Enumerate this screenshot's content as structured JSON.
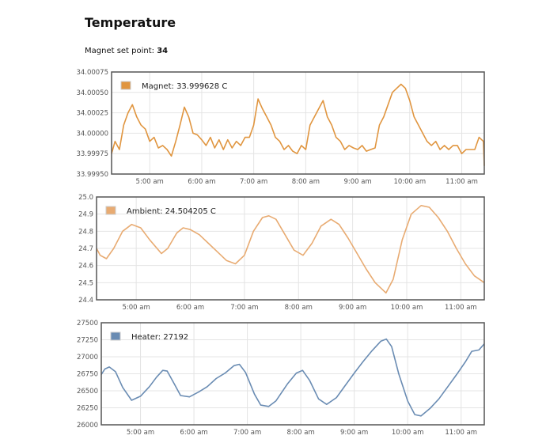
{
  "page": {
    "title": "Temperature",
    "setpoint_label": "Magnet set point:",
    "setpoint_value": "34"
  },
  "chart_data": [
    {
      "type": "line",
      "legend": "Magnet: 33.999628 C",
      "color": "#e0953f",
      "ylim": [
        33.9995,
        34.00075
      ],
      "yticks": [
        "33.99950",
        "33.99975",
        "34.00000",
        "34.00025",
        "34.00050",
        "34.00075"
      ],
      "xlim": [
        "4:16",
        "11:26"
      ],
      "xticks": [
        "5:00 am",
        "6:00 am",
        "7:00 am",
        "8:00 am",
        "9:00 am",
        "10:00 am",
        "11:00 am"
      ],
      "grid": true,
      "legend_position": "top-left",
      "x": [
        "4:16",
        "4:20",
        "4:25",
        "4:30",
        "4:35",
        "4:40",
        "4:45",
        "4:50",
        "4:55",
        "5:00",
        "5:05",
        "5:10",
        "5:15",
        "5:20",
        "5:25",
        "5:30",
        "5:35",
        "5:40",
        "5:45",
        "5:50",
        "5:55",
        "6:00",
        "6:05",
        "6:10",
        "6:15",
        "6:20",
        "6:25",
        "6:30",
        "6:35",
        "6:40",
        "6:45",
        "6:50",
        "6:55",
        "7:00",
        "7:05",
        "7:10",
        "7:15",
        "7:20",
        "7:25",
        "7:30",
        "7:35",
        "7:40",
        "7:45",
        "7:50",
        "7:55",
        "8:00",
        "8:05",
        "8:10",
        "8:15",
        "8:20",
        "8:25",
        "8:30",
        "8:35",
        "8:40",
        "8:45",
        "8:50",
        "8:55",
        "9:00",
        "9:05",
        "9:10",
        "9:15",
        "9:20",
        "9:25",
        "9:30",
        "9:35",
        "9:40",
        "9:45",
        "9:50",
        "9:55",
        "10:00",
        "10:05",
        "10:10",
        "10:15",
        "10:20",
        "10:25",
        "10:30",
        "10:35",
        "10:40",
        "10:45",
        "10:50",
        "10:55",
        "11:00",
        "11:05",
        "11:10",
        "11:15",
        "11:20",
        "11:25",
        "11:26"
      ],
      "y": [
        33.99975,
        33.9999,
        33.9998,
        34.0001,
        34.00025,
        34.00035,
        34.0002,
        34.0001,
        34.00005,
        33.9999,
        33.99995,
        33.99982,
        33.99985,
        33.9998,
        33.99972,
        33.9999,
        34.0001,
        34.00032,
        34.0002,
        34.0,
        33.99998,
        33.99992,
        33.99985,
        33.99995,
        33.99982,
        33.99992,
        33.9998,
        33.99992,
        33.99982,
        33.9999,
        33.99985,
        33.99995,
        33.99995,
        34.0001,
        34.00042,
        34.0003,
        34.0002,
        34.0001,
        33.99995,
        33.9999,
        33.9998,
        33.99985,
        33.99978,
        33.99975,
        33.99985,
        33.9998,
        34.0001,
        34.0002,
        34.0003,
        34.0004,
        34.0002,
        34.0001,
        33.99995,
        33.9999,
        33.9998,
        33.99985,
        33.99982,
        33.9998,
        33.99985,
        33.99978,
        33.9998,
        33.99982,
        34.0001,
        34.0002,
        34.00035,
        34.0005,
        34.00055,
        34.0006,
        34.00055,
        34.0004,
        34.0002,
        34.0001,
        34.0,
        33.9999,
        33.99985,
        33.9999,
        33.9998,
        33.99985,
        33.9998,
        33.99985,
        33.99985,
        33.99975,
        33.9998,
        33.9998,
        33.9998,
        33.99995,
        33.9999,
        33.9996
      ]
    },
    {
      "type": "line",
      "legend": "Ambient: 24.504205 C",
      "color": "#e8ab72",
      "ylim": [
        24.4,
        25.0
      ],
      "yticks": [
        "24.4",
        "24.5",
        "24.6",
        "24.7",
        "24.8",
        "24.9",
        "25.0"
      ],
      "xlim": [
        "4:16",
        "11:26"
      ],
      "xticks": [
        "5:00 am",
        "6:00 am",
        "7:00 am",
        "8:00 am",
        "9:00 am",
        "10:00 am",
        "11:00 am"
      ],
      "grid": true,
      "legend_position": "top-left",
      "x": [
        "4:16",
        "4:20",
        "4:27",
        "4:35",
        "4:45",
        "4:55",
        "5:05",
        "5:15",
        "5:28",
        "5:35",
        "5:45",
        "5:52",
        "6:00",
        "6:10",
        "6:20",
        "6:30",
        "6:40",
        "6:50",
        "7:00",
        "7:10",
        "7:20",
        "7:27",
        "7:35",
        "7:45",
        "7:55",
        "8:05",
        "8:15",
        "8:25",
        "8:36",
        "8:45",
        "8:55",
        "9:05",
        "9:15",
        "9:25",
        "9:37",
        "9:45",
        "9:55",
        "10:05",
        "10:16",
        "10:25",
        "10:35",
        "10:45",
        "10:55",
        "11:05",
        "11:15",
        "11:26"
      ],
      "y": [
        24.7,
        24.66,
        24.64,
        24.7,
        24.8,
        24.84,
        24.82,
        24.75,
        24.67,
        24.7,
        24.79,
        24.82,
        24.81,
        24.78,
        24.73,
        24.68,
        24.63,
        24.61,
        24.66,
        24.8,
        24.88,
        24.89,
        24.87,
        24.78,
        24.69,
        24.66,
        24.73,
        24.83,
        24.87,
        24.84,
        24.76,
        24.67,
        24.58,
        24.5,
        24.44,
        24.52,
        24.75,
        24.9,
        24.95,
        24.94,
        24.88,
        24.8,
        24.7,
        24.61,
        24.54,
        24.5
      ]
    },
    {
      "type": "line",
      "legend": "Heater: 27192",
      "color": "#6a8cb3",
      "ylim": [
        26000,
        27500
      ],
      "yticks": [
        "26000",
        "26250",
        "26500",
        "26750",
        "27000",
        "27250",
        "27500"
      ],
      "xlim": [
        "4:16",
        "11:26"
      ],
      "xticks": [
        "5:00 am",
        "6:00 am",
        "7:00 am",
        "8:00 am",
        "9:00 am",
        "10:00 am",
        "11:00 am"
      ],
      "grid": true,
      "legend_position": "top-left",
      "x": [
        "4:16",
        "4:20",
        "4:25",
        "4:32",
        "4:40",
        "4:50",
        "5:00",
        "5:10",
        "5:18",
        "5:25",
        "5:30",
        "5:38",
        "5:45",
        "5:55",
        "6:05",
        "6:15",
        "6:25",
        "6:35",
        "6:45",
        "6:51",
        "6:58",
        "7:08",
        "7:15",
        "7:24",
        "7:32",
        "7:45",
        "7:55",
        "8:02",
        "8:10",
        "8:20",
        "8:29",
        "8:40",
        "8:50",
        "9:00",
        "9:10",
        "9:20",
        "9:30",
        "9:36",
        "9:42",
        "9:50",
        "10:00",
        "10:08",
        "10:15",
        "10:25",
        "10:35",
        "10:45",
        "10:55",
        "11:05",
        "11:12",
        "11:20",
        "11:26"
      ],
      "y": [
        26740,
        26820,
        26850,
        26780,
        26550,
        26360,
        26420,
        26560,
        26700,
        26800,
        26790,
        26600,
        26430,
        26410,
        26480,
        26560,
        26680,
        26760,
        26870,
        26890,
        26770,
        26450,
        26290,
        26270,
        26350,
        26600,
        26760,
        26800,
        26650,
        26380,
        26300,
        26400,
        26580,
        26760,
        26930,
        27090,
        27230,
        27260,
        27150,
        26750,
        26350,
        26150,
        26130,
        26240,
        26380,
        26560,
        26740,
        26930,
        27080,
        27100,
        27190
      ]
    }
  ]
}
